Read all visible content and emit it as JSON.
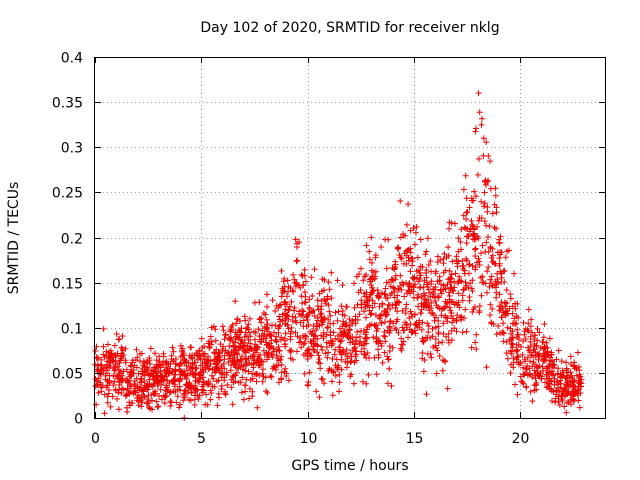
{
  "chart_data": {
    "type": "scatter",
    "title": "Day 102 of 2020, SRMTID for receiver nklg",
    "xlabel": "GPS time / hours",
    "ylabel": "SRMTID / TECUs",
    "xlim": [
      0,
      24
    ],
    "ylim": [
      0,
      0.4
    ],
    "xticks": [
      0,
      5,
      10,
      15,
      20
    ],
    "yticks": [
      0,
      0.05,
      0.1,
      0.15,
      0.2,
      0.25,
      0.3,
      0.35,
      0.4
    ],
    "xtick_labels": [
      "0",
      "5",
      "10",
      "15",
      "20"
    ],
    "ytick_labels": [
      "0",
      "0.05",
      "0.1",
      "0.15",
      "0.2",
      "0.25",
      "0.3",
      "0.35",
      "0.4"
    ],
    "grid": true,
    "marker": "+",
    "color": "#ee0000",
    "x_data_extent": [
      0,
      22.9
    ],
    "series": [
      {
        "name": "SRMTID",
        "trend": [
          [
            0.0,
            0.05
          ],
          [
            0.5,
            0.052
          ],
          [
            1.0,
            0.055
          ],
          [
            1.5,
            0.045
          ],
          [
            2.0,
            0.04
          ],
          [
            2.5,
            0.04
          ],
          [
            3.0,
            0.042
          ],
          [
            3.5,
            0.043
          ],
          [
            4.0,
            0.046
          ],
          [
            4.5,
            0.05
          ],
          [
            5.0,
            0.052
          ],
          [
            5.5,
            0.058
          ],
          [
            6.0,
            0.065
          ],
          [
            6.5,
            0.07
          ],
          [
            7.0,
            0.068
          ],
          [
            7.5,
            0.072
          ],
          [
            8.0,
            0.078
          ],
          [
            8.5,
            0.085
          ],
          [
            9.0,
            0.11
          ],
          [
            9.5,
            0.14
          ],
          [
            10.0,
            0.1
          ],
          [
            10.5,
            0.095
          ],
          [
            11.0,
            0.1
          ],
          [
            11.5,
            0.085
          ],
          [
            12.0,
            0.09
          ],
          [
            12.5,
            0.105
          ],
          [
            13.0,
            0.12
          ],
          [
            13.5,
            0.11
          ],
          [
            14.0,
            0.13
          ],
          [
            14.5,
            0.15
          ],
          [
            15.0,
            0.14
          ],
          [
            15.5,
            0.12
          ],
          [
            16.0,
            0.12
          ],
          [
            16.5,
            0.13
          ],
          [
            17.0,
            0.14
          ],
          [
            17.5,
            0.17
          ],
          [
            18.0,
            0.22
          ],
          [
            18.3,
            0.24
          ],
          [
            18.7,
            0.18
          ],
          [
            19.0,
            0.15
          ],
          [
            19.5,
            0.1
          ],
          [
            20.0,
            0.075
          ],
          [
            20.5,
            0.065
          ],
          [
            21.0,
            0.06
          ],
          [
            21.5,
            0.05
          ],
          [
            22.0,
            0.035
          ],
          [
            22.5,
            0.04
          ],
          [
            22.9,
            0.045
          ]
        ],
        "notable_points": [
          [
            4.2,
            0.0
          ],
          [
            18.05,
            0.36
          ],
          [
            18.3,
            0.31
          ],
          [
            9.6,
            0.195
          ],
          [
            13.0,
            0.2
          ],
          [
            14.4,
            0.2
          ]
        ]
      }
    ]
  }
}
